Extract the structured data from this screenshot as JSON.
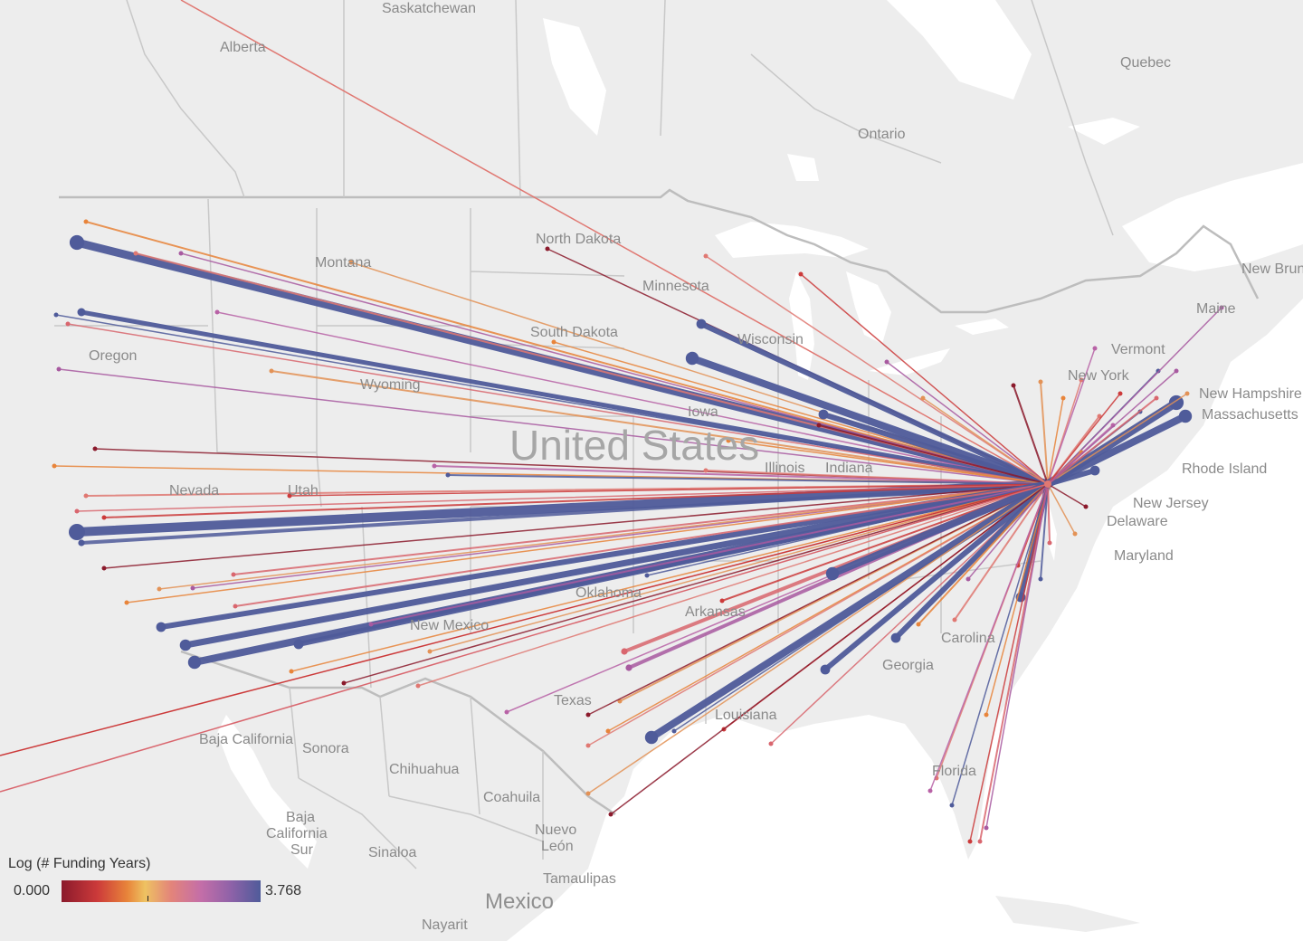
{
  "legend": {
    "title": "Log (# Funding Years)",
    "min": "0.000",
    "max": "3.768"
  },
  "labels": {
    "saskatchewan": "Saskatchewan",
    "alberta": "Alberta",
    "quebec": "Quebec",
    "ontario": "Ontario",
    "north_dakota": "North Dakota",
    "montana": "Montana",
    "minnesota": "Minnesota",
    "south_dakota": "South Dakota",
    "wisconsin": "Wisconsin",
    "oregon": "Oregon",
    "wyoming": "Wyoming",
    "iowa": "Iowa",
    "united_states": "United States",
    "nevada": "Nevada",
    "utah": "Utah",
    "illinois": "Illinois",
    "indiana": "Indiana",
    "oklahoma": "Oklahoma",
    "new_mexico": "New Mexico",
    "arkansas": "Arkansas",
    "georgia": "Georgia",
    "carolina": "Carolina",
    "texas": "Texas",
    "louisiana": "Louisiana",
    "florida": "Florida",
    "new_brunswick": "New Brunswick",
    "maine": "Maine",
    "vermont": "Vermont",
    "new_york": "New York",
    "new_hampshire": "New Hampshire",
    "massachusetts": "Massachusetts",
    "rhode_island": "Rhode Island",
    "new_jersey": "New Jersey",
    "delaware": "Delaware",
    "maryland": "Maryland",
    "baja_california": "Baja California",
    "sonora": "Sonora",
    "chihuahua": "Chihuahua",
    "coahuila": "Coahuila",
    "baja_california_sur_1": "Baja",
    "baja_california_sur_2": "California",
    "baja_california_sur_3": "Sur",
    "nuevo_leon_1": "Nuevo",
    "nuevo_leon_2": "León",
    "sinaloa": "Sinaloa",
    "tamaulipas": "Tamaulipas",
    "mexico": "Mexico",
    "nayarit": "Nayarit"
  },
  "colors": {
    "low": "#8b1a2c",
    "mid_low": "#e8843a",
    "mid": "#e07872",
    "mid_high": "#b862a6",
    "high": "#4f5b9a",
    "land": "#ececec",
    "water": "#ffffff"
  },
  "hub": {
    "name": "Washington, DC area",
    "lon": -77.2,
    "lat": 38.9
  }
}
